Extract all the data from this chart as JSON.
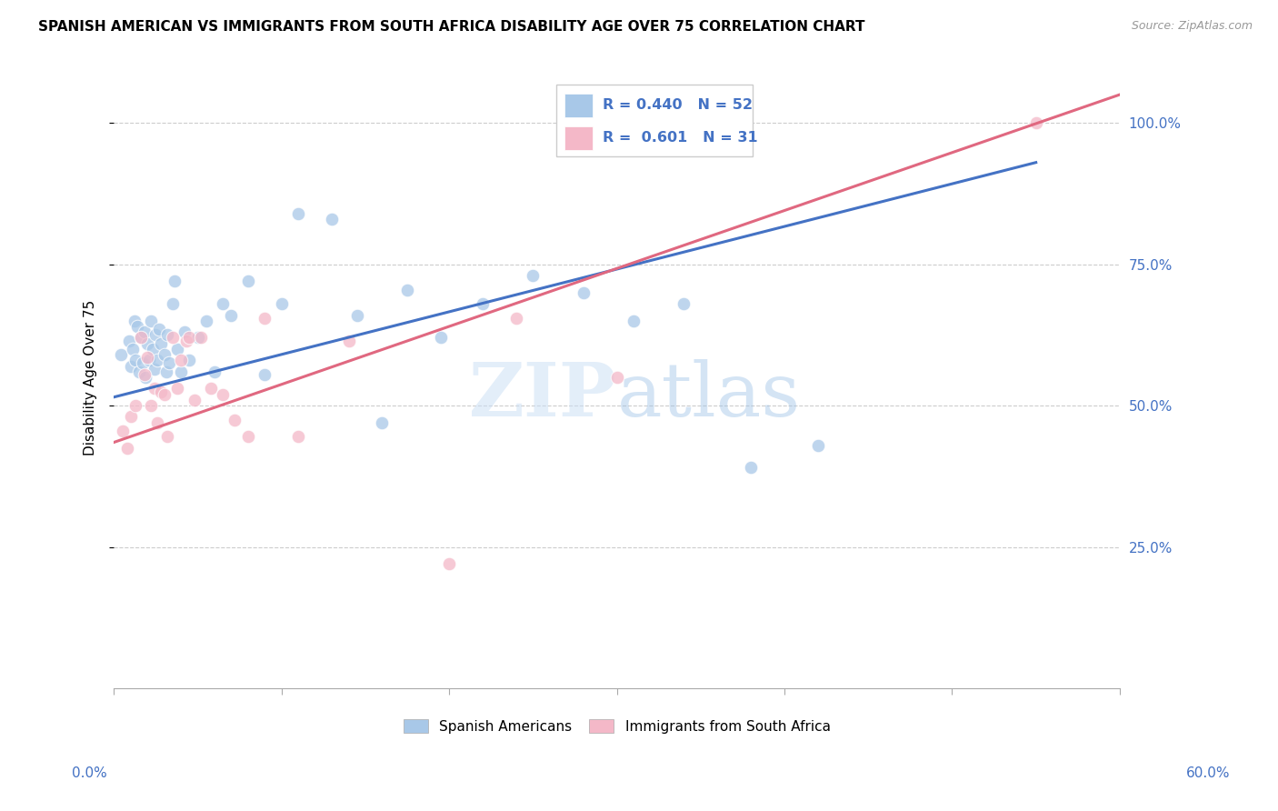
{
  "title": "SPANISH AMERICAN VS IMMIGRANTS FROM SOUTH AFRICA DISABILITY AGE OVER 75 CORRELATION CHART",
  "source": "Source: ZipAtlas.com",
  "ylabel": "Disability Age Over 75",
  "legend_label_blue": "Spanish Americans",
  "legend_label_pink": "Immigrants from South Africa",
  "blue_color": "#a8c8e8",
  "pink_color": "#f4b8c8",
  "blue_line_color": "#4472c4",
  "pink_line_color": "#e06880",
  "blue_scatter_x": [
    0.004,
    0.009,
    0.01,
    0.011,
    0.012,
    0.013,
    0.014,
    0.015,
    0.016,
    0.017,
    0.018,
    0.019,
    0.02,
    0.021,
    0.022,
    0.023,
    0.024,
    0.025,
    0.026,
    0.027,
    0.028,
    0.03,
    0.031,
    0.032,
    0.033,
    0.035,
    0.036,
    0.038,
    0.04,
    0.042,
    0.045,
    0.05,
    0.055,
    0.06,
    0.065,
    0.07,
    0.08,
    0.09,
    0.1,
    0.11,
    0.13,
    0.145,
    0.16,
    0.175,
    0.195,
    0.22,
    0.25,
    0.28,
    0.31,
    0.34,
    0.38,
    0.42
  ],
  "blue_scatter_y": [
    0.59,
    0.615,
    0.57,
    0.6,
    0.65,
    0.58,
    0.64,
    0.56,
    0.62,
    0.575,
    0.63,
    0.55,
    0.61,
    0.58,
    0.65,
    0.6,
    0.565,
    0.625,
    0.58,
    0.635,
    0.61,
    0.59,
    0.56,
    0.625,
    0.575,
    0.68,
    0.72,
    0.6,
    0.56,
    0.63,
    0.58,
    0.62,
    0.65,
    0.56,
    0.68,
    0.66,
    0.72,
    0.555,
    0.68,
    0.84,
    0.83,
    0.66,
    0.47,
    0.705,
    0.62,
    0.68,
    0.73,
    0.7,
    0.65,
    0.68,
    0.39,
    0.43
  ],
  "pink_scatter_x": [
    0.005,
    0.008,
    0.01,
    0.013,
    0.016,
    0.018,
    0.02,
    0.022,
    0.024,
    0.026,
    0.028,
    0.03,
    0.032,
    0.035,
    0.038,
    0.04,
    0.043,
    0.045,
    0.048,
    0.052,
    0.058,
    0.065,
    0.072,
    0.08,
    0.09,
    0.11,
    0.14,
    0.2,
    0.24,
    0.3,
    0.55
  ],
  "pink_scatter_y": [
    0.455,
    0.425,
    0.48,
    0.5,
    0.62,
    0.555,
    0.585,
    0.5,
    0.53,
    0.47,
    0.525,
    0.52,
    0.445,
    0.62,
    0.53,
    0.58,
    0.615,
    0.62,
    0.51,
    0.62,
    0.53,
    0.52,
    0.475,
    0.445,
    0.655,
    0.445,
    0.615,
    0.22,
    0.655,
    0.55,
    1.0
  ],
  "xlim": [
    0.0,
    0.6
  ],
  "ylim": [
    0.0,
    1.1
  ],
  "blue_line_x": [
    0.0,
    0.55
  ],
  "blue_line_y": [
    0.515,
    0.93
  ],
  "pink_line_x": [
    0.0,
    0.6
  ],
  "pink_line_y": [
    0.435,
    1.05
  ],
  "ytick_positions": [
    0.25,
    0.5,
    0.75,
    1.0
  ],
  "ytick_labels_right": [
    "25.0%",
    "50.0%",
    "75.0%",
    "100.0%"
  ],
  "right_label_color": "#4472c4",
  "grid_color": "#cccccc",
  "title_fontsize": 11,
  "source_fontsize": 9,
  "ylabel_fontsize": 11,
  "scatter_size": 110,
  "scatter_alpha": 0.75
}
